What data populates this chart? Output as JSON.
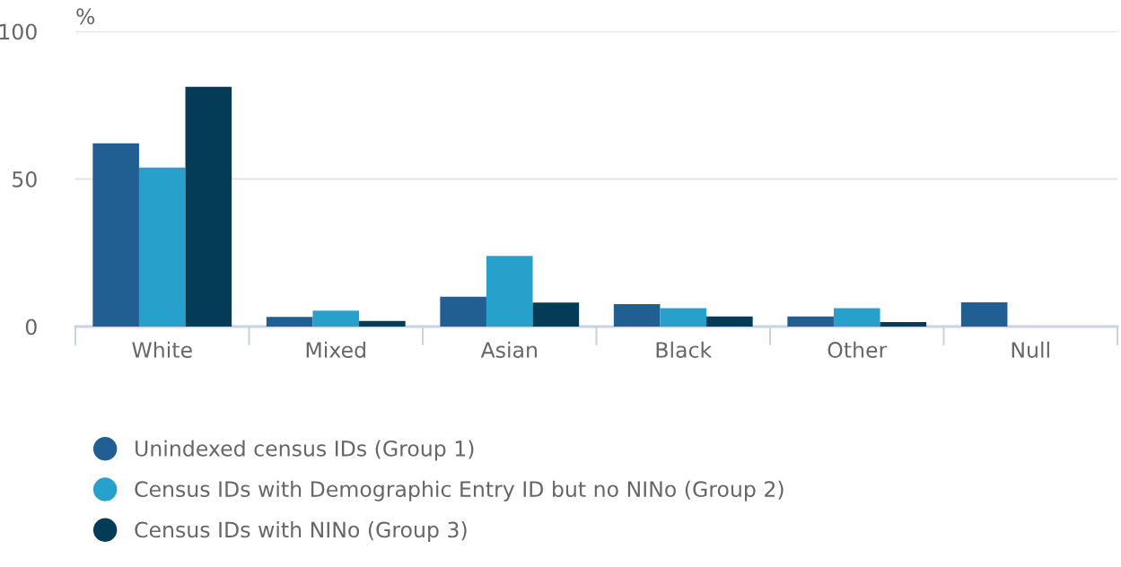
{
  "chart_data": {
    "type": "bar",
    "ylabel": "%",
    "categories": [
      "White",
      "Mixed",
      "Asian",
      "Black",
      "Other",
      "Null"
    ],
    "series": [
      {
        "name": "Unindexed census IDs (Group 1)",
        "color": "#215f93",
        "values": [
          62.1,
          3.3,
          10.1,
          7.6,
          3.4,
          8.2
        ]
      },
      {
        "name": "Census IDs with Demographic Entry ID but no NINo (Group 2)",
        "color": "#28a0cc",
        "values": [
          53.9,
          5.4,
          23.9,
          6.2,
          6.2,
          0
        ]
      },
      {
        "name": "Census IDs with NINo (Group 3)",
        "color": "#043b57",
        "values": [
          81.2,
          1.9,
          8.1,
          3.4,
          1.5,
          0
        ]
      }
    ],
    "ylim": [
      0,
      100
    ],
    "yticks": [
      0,
      50,
      100
    ],
    "grid": "y",
    "legend": "bottom"
  }
}
